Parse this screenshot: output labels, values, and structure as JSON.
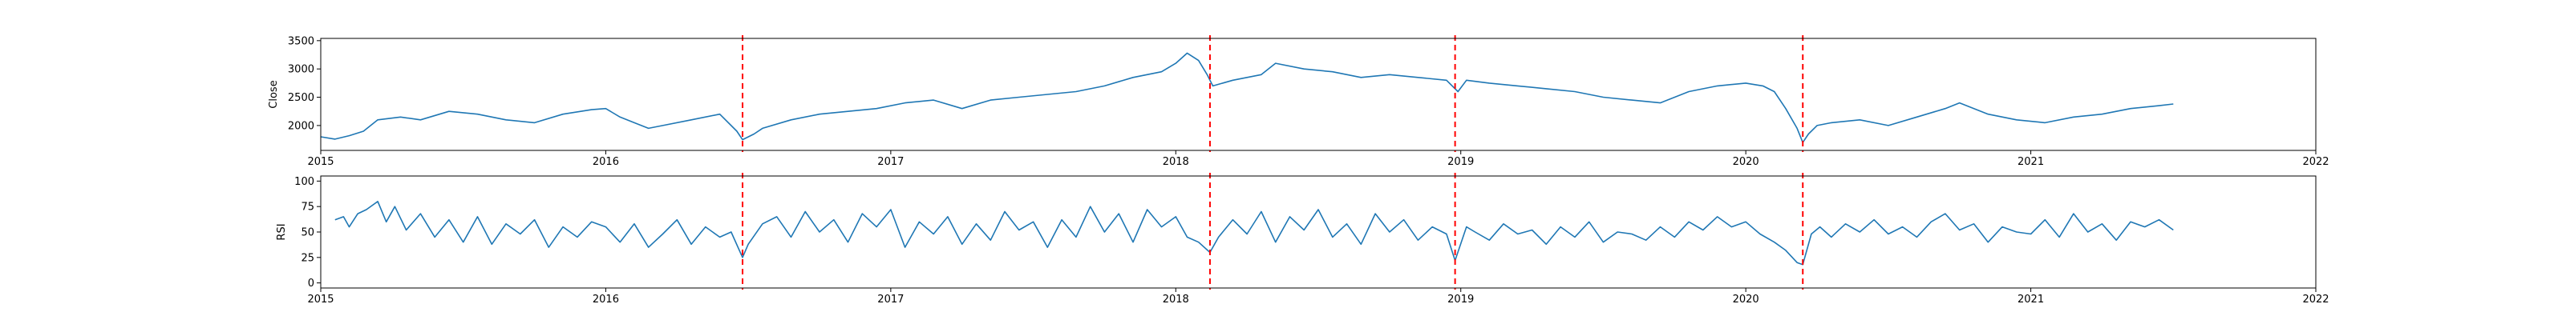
{
  "colors": {
    "series": "#1f77b4",
    "event_line": "#ff0000",
    "axes": "#000000",
    "background": "#ffffff"
  },
  "chart_data": [
    {
      "type": "line",
      "title": "",
      "xlabel": "",
      "ylabel": "Close",
      "xlim": [
        2015.0,
        2022.0
      ],
      "ylim": [
        1560,
        3540
      ],
      "x_ticks": [
        2015,
        2016,
        2017,
        2018,
        2019,
        2020,
        2021,
        2022
      ],
      "x_tick_labels": [
        "2015",
        "2016",
        "2017",
        "2018",
        "2019",
        "2020",
        "2021",
        "2022"
      ],
      "y_ticks": [
        2000,
        2500,
        3000,
        3500
      ],
      "y_tick_labels": [
        "2000",
        "2500",
        "3000",
        "3500"
      ],
      "grid": false,
      "series": [
        {
          "x": [
            2015.0,
            2015.05,
            2015.1,
            2015.15,
            2015.2,
            2015.28,
            2015.35,
            2015.45,
            2015.55,
            2015.65,
            2015.75,
            2015.85,
            2015.95,
            2016.0,
            2016.05,
            2016.1,
            2016.15,
            2016.2,
            2016.3,
            2016.4,
            2016.46,
            2016.48,
            2016.52,
            2016.55,
            2016.65,
            2016.75,
            2016.85,
            2016.95,
            2017.05,
            2017.15,
            2017.25,
            2017.35,
            2017.45,
            2017.55,
            2017.65,
            2017.75,
            2017.85,
            2017.95,
            2018.0,
            2018.04,
            2018.08,
            2018.11,
            2018.13,
            2018.2,
            2018.3,
            2018.35,
            2018.45,
            2018.55,
            2018.65,
            2018.75,
            2018.85,
            2018.95,
            2018.99,
            2019.02,
            2019.1,
            2019.2,
            2019.3,
            2019.4,
            2019.5,
            2019.6,
            2019.7,
            2019.8,
            2019.9,
            2020.0,
            2020.06,
            2020.1,
            2020.14,
            2020.18,
            2020.2,
            2020.22,
            2020.25,
            2020.3,
            2020.4,
            2020.5,
            2020.6,
            2020.7,
            2020.75,
            2020.85,
            2020.95,
            2021.05,
            2021.15,
            2021.25,
            2021.35,
            2021.45,
            2021.5
          ],
          "values": [
            1800,
            1760,
            1820,
            1900,
            2100,
            2150,
            2100,
            2250,
            2200,
            2100,
            2050,
            2200,
            2280,
            2300,
            2150,
            2050,
            1950,
            2000,
            2100,
            2200,
            1900,
            1750,
            1850,
            1950,
            2100,
            2200,
            2250,
            2300,
            2400,
            2450,
            2300,
            2450,
            2500,
            2550,
            2600,
            2700,
            2850,
            2950,
            3100,
            3280,
            3150,
            2900,
            2700,
            2800,
            2900,
            3100,
            3000,
            2950,
            2850,
            2900,
            2850,
            2800,
            2600,
            2800,
            2750,
            2700,
            2650,
            2600,
            2500,
            2450,
            2400,
            2600,
            2700,
            2750,
            2700,
            2600,
            2300,
            1950,
            1700,
            1850,
            2000,
            2050,
            2100,
            2000,
            2150,
            2300,
            2400,
            2200,
            2100,
            2050,
            2150,
            2200,
            2300,
            2350,
            2380
          ]
        }
      ],
      "vertical_lines_x": [
        2016.48,
        2018.12,
        2018.98,
        2020.2
      ]
    },
    {
      "type": "line",
      "title": "",
      "xlabel": "",
      "ylabel": "RSI",
      "xlim": [
        2015.0,
        2022.0
      ],
      "ylim": [
        -5,
        105
      ],
      "x_ticks": [
        2015,
        2016,
        2017,
        2018,
        2019,
        2020,
        2021,
        2022
      ],
      "x_tick_labels": [
        "2015",
        "2016",
        "2017",
        "2018",
        "2019",
        "2020",
        "2021",
        "2022"
      ],
      "y_ticks": [
        0,
        25,
        50,
        75,
        100
      ],
      "y_tick_labels": [
        "0",
        "25",
        "50",
        "75",
        "100"
      ],
      "grid": false,
      "series": [
        {
          "x": [
            2015.05,
            2015.08,
            2015.1,
            2015.13,
            2015.16,
            2015.2,
            2015.23,
            2015.26,
            2015.3,
            2015.35,
            2015.4,
            2015.45,
            2015.5,
            2015.55,
            2015.6,
            2015.65,
            2015.7,
            2015.75,
            2015.8,
            2015.85,
            2015.9,
            2015.95,
            2016.0,
            2016.05,
            2016.1,
            2016.15,
            2016.2,
            2016.25,
            2016.3,
            2016.35,
            2016.4,
            2016.44,
            2016.48,
            2016.5,
            2016.55,
            2016.6,
            2016.65,
            2016.7,
            2016.75,
            2016.8,
            2016.85,
            2016.9,
            2016.95,
            2017.0,
            2017.05,
            2017.1,
            2017.15,
            2017.2,
            2017.25,
            2017.3,
            2017.35,
            2017.4,
            2017.45,
            2017.5,
            2017.55,
            2017.6,
            2017.65,
            2017.7,
            2017.75,
            2017.8,
            2017.85,
            2017.9,
            2017.95,
            2018.0,
            2018.04,
            2018.08,
            2018.12,
            2018.15,
            2018.2,
            2018.25,
            2018.3,
            2018.35,
            2018.4,
            2018.45,
            2018.5,
            2018.55,
            2018.6,
            2018.65,
            2018.7,
            2018.75,
            2018.8,
            2018.85,
            2018.9,
            2018.95,
            2018.98,
            2019.02,
            2019.05,
            2019.1,
            2019.15,
            2019.2,
            2019.25,
            2019.3,
            2019.35,
            2019.4,
            2019.45,
            2019.5,
            2019.55,
            2019.6,
            2019.65,
            2019.7,
            2019.75,
            2019.8,
            2019.85,
            2019.9,
            2019.95,
            2020.0,
            2020.05,
            2020.1,
            2020.14,
            2020.18,
            2020.2,
            2020.23,
            2020.26,
            2020.3,
            2020.35,
            2020.4,
            2020.45,
            2020.5,
            2020.55,
            2020.6,
            2020.65,
            2020.7,
            2020.75,
            2020.8,
            2020.85,
            2020.9,
            2020.95,
            2021.0,
            2021.05,
            2021.1,
            2021.15,
            2021.2,
            2021.25,
            2021.3,
            2021.35,
            2021.4,
            2021.45,
            2021.5
          ],
          "values": [
            62,
            65,
            55,
            68,
            72,
            80,
            60,
            75,
            52,
            68,
            45,
            62,
            40,
            65,
            38,
            58,
            48,
            62,
            35,
            55,
            45,
            60,
            55,
            40,
            58,
            35,
            48,
            62,
            38,
            55,
            45,
            50,
            25,
            38,
            58,
            65,
            45,
            70,
            50,
            62,
            40,
            68,
            55,
            72,
            35,
            60,
            48,
            65,
            38,
            58,
            42,
            70,
            52,
            60,
            35,
            62,
            45,
            75,
            50,
            68,
            40,
            72,
            55,
            65,
            45,
            40,
            30,
            45,
            62,
            48,
            70,
            40,
            65,
            52,
            72,
            45,
            58,
            38,
            68,
            50,
            62,
            42,
            55,
            48,
            22,
            55,
            50,
            42,
            58,
            48,
            52,
            38,
            55,
            45,
            60,
            40,
            50,
            48,
            42,
            55,
            45,
            60,
            52,
            65,
            55,
            60,
            48,
            40,
            32,
            20,
            18,
            48,
            55,
            45,
            58,
            50,
            62,
            48,
            55,
            45,
            60,
            68,
            52,
            58,
            40,
            55,
            50,
            48,
            62,
            45,
            68,
            50,
            58,
            42,
            60,
            55,
            62,
            52
          ]
        }
      ],
      "vertical_lines_x": [
        2016.48,
        2018.12,
        2018.98,
        2020.2
      ]
    }
  ]
}
